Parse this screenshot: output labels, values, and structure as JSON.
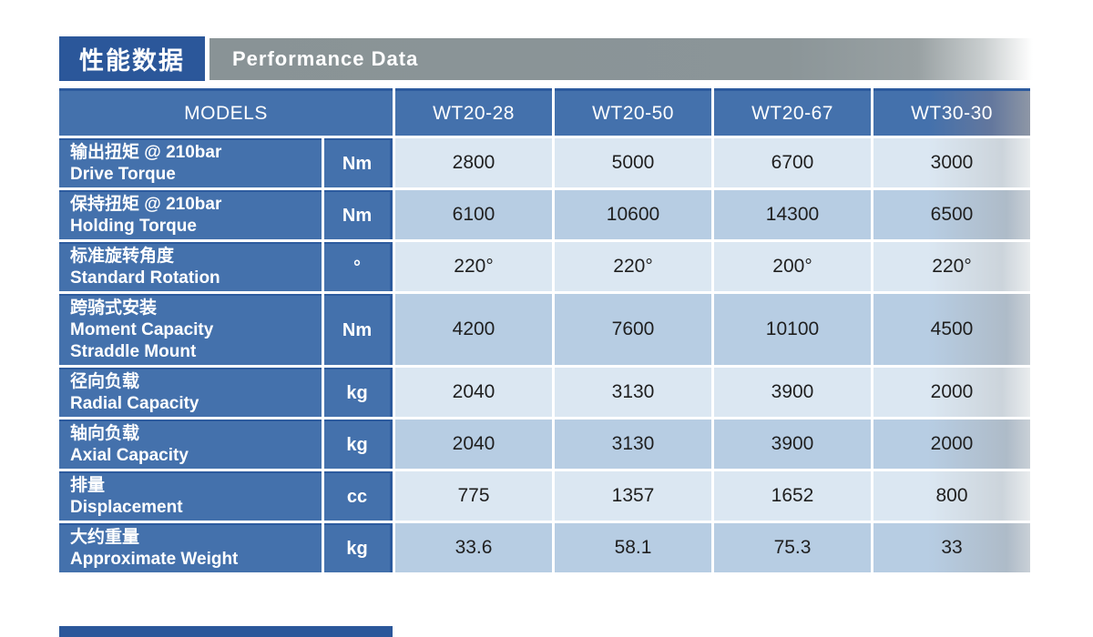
{
  "header": {
    "title_zh": "性能数据",
    "title_en": "Performance Data"
  },
  "table": {
    "models_label": "MODELS",
    "columns": [
      "WT20-28",
      "WT20-50",
      "WT20-67",
      "WT30-30"
    ],
    "rows": [
      {
        "label_lines": [
          "输出扭矩 @ 210bar",
          "Drive Torque"
        ],
        "unit": "Nm",
        "values": [
          "2800",
          "5000",
          "6700",
          "3000"
        ]
      },
      {
        "label_lines": [
          "保持扭矩 @ 210bar",
          "Holding Torque"
        ],
        "unit": "Nm",
        "values": [
          "6100",
          "10600",
          "14300",
          "6500"
        ]
      },
      {
        "label_lines": [
          "标准旋转角度",
          "Standard Rotation"
        ],
        "unit": "°",
        "values": [
          "220°",
          "220°",
          "200°",
          "220°"
        ]
      },
      {
        "label_lines": [
          "跨骑式安装",
          "Moment Capacity",
          "Straddle Mount"
        ],
        "unit": "Nm",
        "values": [
          "4200",
          "7600",
          "10100",
          "4500"
        ]
      },
      {
        "label_lines": [
          "径向负载",
          "Radial Capacity"
        ],
        "unit": "kg",
        "values": [
          "2040",
          "3130",
          "3900",
          "2000"
        ]
      },
      {
        "label_lines": [
          "轴向负载",
          "Axial Capacity"
        ],
        "unit": "kg",
        "values": [
          "2040",
          "3130",
          "3900",
          "2000"
        ]
      },
      {
        "label_lines": [
          "排量",
          "Displacement"
        ],
        "unit": "cc",
        "values": [
          "775",
          "1357",
          "1652",
          "800"
        ]
      },
      {
        "label_lines": [
          "大约重量",
          "Approximate Weight"
        ],
        "unit": "kg",
        "values": [
          "33.6",
          "58.1",
          "75.3",
          "33"
        ]
      }
    ]
  },
  "colors": {
    "accent_dark_blue": "#2b579a",
    "table_blue": "#4471ac",
    "row_light": "#dbe7f2",
    "row_medium": "#b7cde3",
    "header_gray": "#8b9598",
    "value_text": "#1f1f1f"
  }
}
